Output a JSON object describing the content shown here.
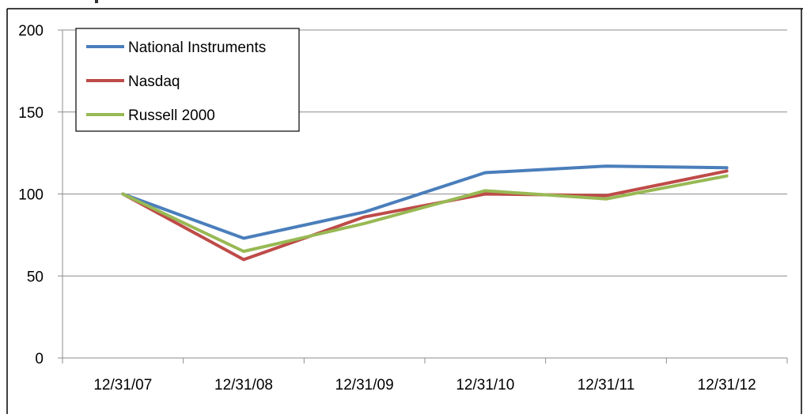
{
  "chart_data": {
    "type": "line",
    "categories": [
      "12/31/07",
      "12/31/08",
      "12/31/09",
      "12/31/10",
      "12/31/11",
      "12/31/12"
    ],
    "series": [
      {
        "name": "National Instruments",
        "color": "#4a7ebb",
        "values": [
          100,
          73,
          89,
          113,
          117,
          116
        ]
      },
      {
        "name": "Nasdaq",
        "color": "#be4b48",
        "values": [
          100,
          60,
          86,
          100,
          99,
          114
        ]
      },
      {
        "name": "Russell 2000",
        "color": "#98b954",
        "values": [
          100,
          65,
          82,
          102,
          97,
          111
        ]
      }
    ],
    "yticks": [
      0,
      50,
      100,
      150,
      200
    ],
    "ylim": [
      0,
      200
    ],
    "grid": true,
    "legend": "top-left",
    "title": "",
    "xlabel": "",
    "ylabel": ""
  }
}
